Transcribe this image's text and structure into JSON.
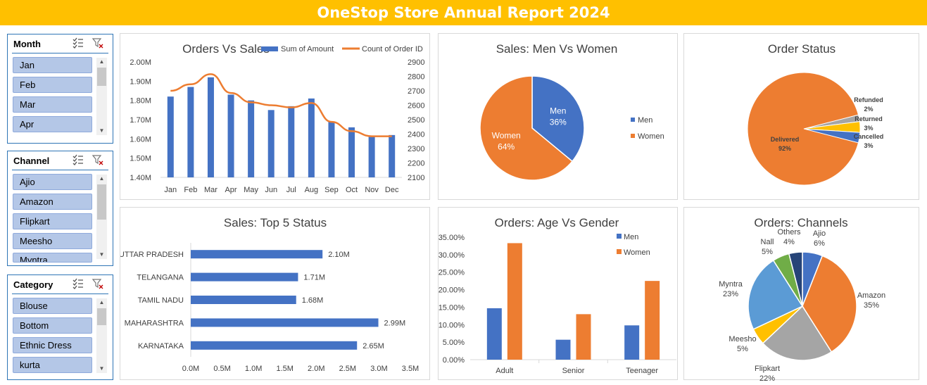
{
  "banner": {
    "title": "OneStop Store Annual Report 2024"
  },
  "colors": {
    "banner": "#ffc000",
    "blue": "#4472c4",
    "orange": "#ed7d31",
    "gray": "#a5a5a5",
    "gold": "#ffc000",
    "lightblue": "#5b9bd5",
    "green": "#70ad47",
    "navy": "#264478",
    "slicer_item": "#b4c7e7"
  },
  "slicers": {
    "month": {
      "title": "Month",
      "items": [
        "Jan",
        "Feb",
        "Mar",
        "Apr"
      ]
    },
    "channel": {
      "title": "Channel",
      "items": [
        "Ajio",
        "Amazon",
        "Flipkart",
        "Meesho",
        "Myntra"
      ]
    },
    "category": {
      "title": "Category",
      "items": [
        "Blouse",
        "Bottom",
        "Ethnic Dress",
        "kurta"
      ]
    }
  },
  "chart_data": [
    {
      "type": "bar+line",
      "title": "Orders  Vs Sales",
      "categories": [
        "Jan",
        "Feb",
        "Mar",
        "Apr",
        "May",
        "Jun",
        "Jul",
        "Aug",
        "Sep",
        "Oct",
        "Nov",
        "Dec"
      ],
      "series": [
        {
          "name": "Sum of Amount",
          "type": "bar",
          "axis": "left",
          "values": [
            1.82,
            1.87,
            1.92,
            1.83,
            1.8,
            1.75,
            1.77,
            1.81,
            1.69,
            1.66,
            1.61,
            1.62
          ]
        },
        {
          "name": "Count of Order ID",
          "type": "line",
          "axis": "right",
          "values": [
            2700,
            2745,
            2815,
            2685,
            2620,
            2600,
            2585,
            2615,
            2485,
            2420,
            2385,
            2385
          ]
        }
      ],
      "left_ticks": [
        "2.00M",
        "1.90M",
        "1.80M",
        "1.70M",
        "1.60M",
        "1.50M",
        "1.40M"
      ],
      "right_ticks": [
        "2900",
        "2800",
        "2700",
        "2600",
        "2500",
        "2400",
        "2300",
        "2200",
        "2100"
      ],
      "ylim_left": [
        1.4,
        2.0
      ],
      "ylim_right": [
        2100,
        2900
      ],
      "legend": "top"
    },
    {
      "type": "pie",
      "title": "Sales: Men Vs Women",
      "labels": [
        "Men",
        "Women"
      ],
      "values": [
        36,
        64
      ],
      "data_labels": [
        "36%",
        "64%"
      ],
      "legend": "right"
    },
    {
      "type": "pie",
      "title": "Order Status",
      "labels": [
        "Refunded",
        "Returned",
        "Cancelled",
        "Delivered"
      ],
      "values": [
        2,
        3,
        3,
        92
      ],
      "data_labels": [
        "2%",
        "3%",
        "3%",
        "92%"
      ]
    },
    {
      "type": "bar",
      "orientation": "horizontal",
      "title": "Sales: Top 5 Status",
      "categories": [
        "UTTAR PRADESH",
        "TELANGANA",
        "TAMIL NADU",
        "MAHARASHTRA",
        "KARNATAKA"
      ],
      "values": [
        2.1,
        1.71,
        1.68,
        2.99,
        2.65
      ],
      "data_labels": [
        "2.10M",
        "1.71M",
        "1.68M",
        "2.99M",
        "2.65M"
      ],
      "x_ticks": [
        "0.0M",
        "0.5M",
        "1.0M",
        "1.5M",
        "2.0M",
        "2.5M",
        "3.0M",
        "3.5M"
      ],
      "xlim": [
        0,
        3.5
      ]
    },
    {
      "type": "bar",
      "title": "Orders: Age Vs Gender",
      "categories": [
        "Adult",
        "Senior",
        "Teenager"
      ],
      "series": [
        {
          "name": "Men",
          "values": [
            14.7,
            5.7,
            9.8
          ]
        },
        {
          "name": "Women",
          "values": [
            33.3,
            13.0,
            22.5
          ]
        }
      ],
      "y_ticks": [
        "35.00%",
        "30.00%",
        "25.00%",
        "20.00%",
        "15.00%",
        "10.00%",
        "5.00%",
        "0.00%"
      ],
      "ylim": [
        0,
        35
      ],
      "legend": "top-right"
    },
    {
      "type": "pie",
      "title": "Orders: Channels",
      "labels": [
        "Ajio",
        "Amazon",
        "Flipkart",
        "Meesho",
        "Myntra",
        "Nall",
        "Others"
      ],
      "values": [
        6,
        35,
        22,
        5,
        23,
        5,
        4
      ],
      "data_labels": [
        "6%",
        "35%",
        "22%",
        "5%",
        "23%",
        "5%",
        "4%"
      ]
    }
  ]
}
